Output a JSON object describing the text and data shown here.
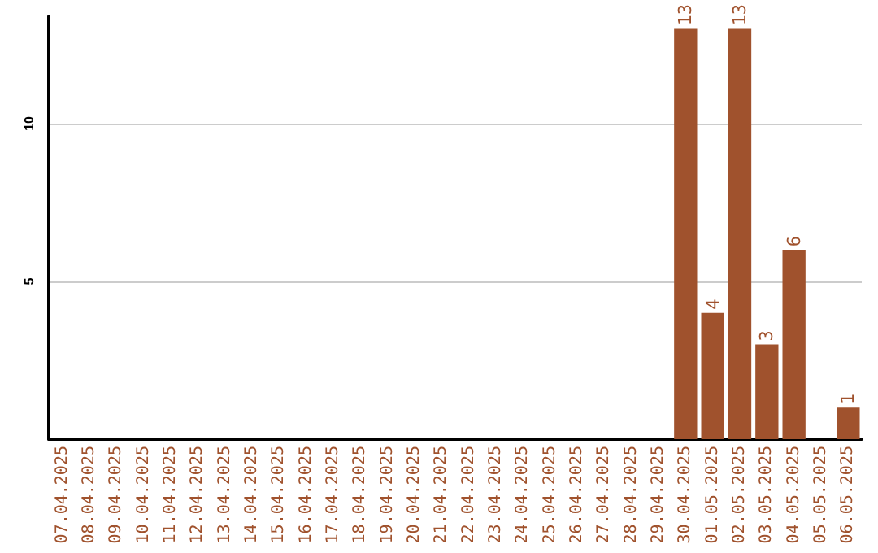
{
  "chart_data": {
    "type": "bar",
    "categories": [
      "07.04.2025",
      "08.04.2025",
      "09.04.2025",
      "10.04.2025",
      "11.04.2025",
      "12.04.2025",
      "13.04.2025",
      "14.04.2025",
      "15.04.2025",
      "16.04.2025",
      "17.04.2025",
      "18.04.2025",
      "19.04.2025",
      "20.04.2025",
      "21.04.2025",
      "22.04.2025",
      "23.04.2025",
      "24.04.2025",
      "25.04.2025",
      "26.04.2025",
      "27.04.2025",
      "28.04.2025",
      "29.04.2025",
      "30.04.2025",
      "01.05.2025",
      "02.05.2025",
      "03.05.2025",
      "04.05.2025",
      "05.05.2025",
      "06.05.2025"
    ],
    "values": [
      0,
      0,
      0,
      0,
      0,
      0,
      0,
      0,
      0,
      0,
      0,
      0,
      0,
      0,
      0,
      0,
      0,
      0,
      0,
      0,
      0,
      0,
      0,
      13,
      4,
      13,
      3,
      6,
      0,
      1
    ],
    "value_labels": [
      null,
      null,
      null,
      null,
      null,
      null,
      null,
      null,
      null,
      null,
      null,
      null,
      null,
      null,
      null,
      null,
      null,
      null,
      null,
      null,
      null,
      null,
      null,
      "13",
      "4",
      "13",
      "3",
      "6",
      null,
      "1"
    ],
    "color": "#a0522d",
    "ylim": [
      0,
      13.4
    ],
    "yticks": [
      5,
      10
    ],
    "grid": "y"
  }
}
